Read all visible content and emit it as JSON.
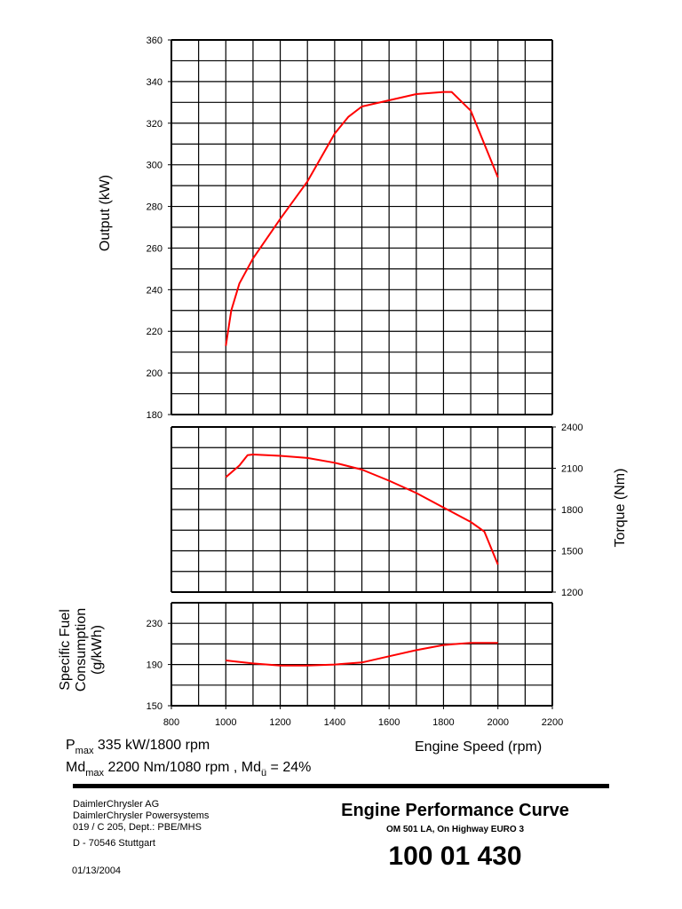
{
  "chart_data": [
    {
      "type": "line",
      "ylabel": "Output (kW)",
      "ylim": [
        180,
        360
      ],
      "yticks": [
        180,
        200,
        220,
        240,
        260,
        280,
        300,
        320,
        340,
        360
      ],
      "xlim": [
        800,
        2200
      ],
      "grid": true,
      "color": "#ff0000",
      "x": [
        1000,
        1020,
        1050,
        1100,
        1200,
        1300,
        1400,
        1450,
        1500,
        1600,
        1700,
        1800,
        1830,
        1900,
        2000
      ],
      "y": [
        213,
        230,
        243,
        255,
        274,
        292,
        315,
        323,
        328,
        331,
        334,
        335,
        335,
        326,
        294
      ]
    },
    {
      "type": "line",
      "ylabel": "Torque (Nm)",
      "ylim": [
        1200,
        2400
      ],
      "yticks": [
        1200,
        1500,
        1800,
        2100,
        2400
      ],
      "xlim": [
        800,
        2200
      ],
      "grid": true,
      "color": "#ff0000",
      "x": [
        1000,
        1050,
        1080,
        1100,
        1200,
        1300,
        1400,
        1500,
        1600,
        1700,
        1800,
        1900,
        1950,
        2000
      ],
      "y": [
        2035,
        2120,
        2195,
        2200,
        2190,
        2175,
        2140,
        2090,
        2010,
        1920,
        1815,
        1710,
        1640,
        1400
      ]
    },
    {
      "type": "line",
      "ylabel": "Specific Fuel Consumption (g/kWh)",
      "ylabel_lines": [
        "Specific Fuel",
        "Consumption",
        "(g/kWh)"
      ],
      "ylim": [
        150,
        250
      ],
      "yticks": [
        150,
        190,
        230
      ],
      "xlabel": "Engine Speed (rpm)",
      "xlim": [
        800,
        2200
      ],
      "xticks": [
        800,
        1000,
        1200,
        1400,
        1600,
        1800,
        2000,
        2200
      ],
      "grid": true,
      "color": "#ff0000",
      "x": [
        1000,
        1100,
        1200,
        1300,
        1400,
        1500,
        1600,
        1700,
        1800,
        1900,
        2000
      ],
      "y": [
        194,
        191,
        189,
        189,
        190,
        192,
        198,
        204,
        209,
        211,
        211
      ]
    }
  ],
  "notes": {
    "pmax_sym": "P",
    "pmax_sub": "max",
    "pmax_text": " 335 kW/1800 rpm",
    "mdmax_sym": "Md",
    "mdmax_sub": "max",
    "mdmax_text": " 2200 Nm/1080 rpm , Md",
    "mdu_sub": "ü",
    "mdu_text": " = 24%"
  },
  "footer": {
    "company": [
      "DaimlerChrysler AG",
      "DaimlerChrysler Powersystems",
      "019 / C 205, Dept.: PBE/MHS"
    ],
    "address": "D - 70546 Stuttgart",
    "date": "01/13/2004",
    "title": "Engine Performance Curve",
    "subtitle": "OM 501 LA, On Highway EURO 3",
    "number": "100 01 430"
  }
}
